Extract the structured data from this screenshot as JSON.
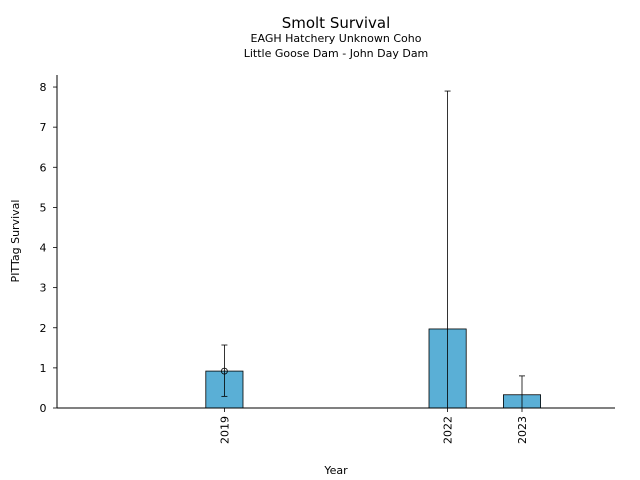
{
  "chart_data": {
    "type": "bar",
    "title": "Smolt Survival",
    "subtitle_lines": [
      "EAGH Hatchery Unknown Coho",
      "Little Goose Dam - John Day Dam"
    ],
    "xlabel": "Year",
    "ylabel": "PITTag Survival",
    "x_range": [
      2016.75,
      2024.25
    ],
    "ylim": [
      0,
      8.3
    ],
    "y_ticks": [
      0,
      1,
      2,
      3,
      4,
      5,
      6,
      7,
      8
    ],
    "bar_width_years": 0.5,
    "bar_color": "#5aafd6",
    "grid": false,
    "bars": [
      {
        "category": "2019",
        "x": 2019,
        "value": 0.92,
        "err_low": 0.29,
        "err_high": 1.57,
        "marker": true
      },
      {
        "category": "2022",
        "x": 2022,
        "value": 1.97,
        "err_low": 0.0,
        "err_high": 7.9,
        "marker": false
      },
      {
        "category": "2023",
        "x": 2023,
        "value": 0.33,
        "err_low": 0.0,
        "err_high": 0.8,
        "marker": false
      }
    ]
  }
}
